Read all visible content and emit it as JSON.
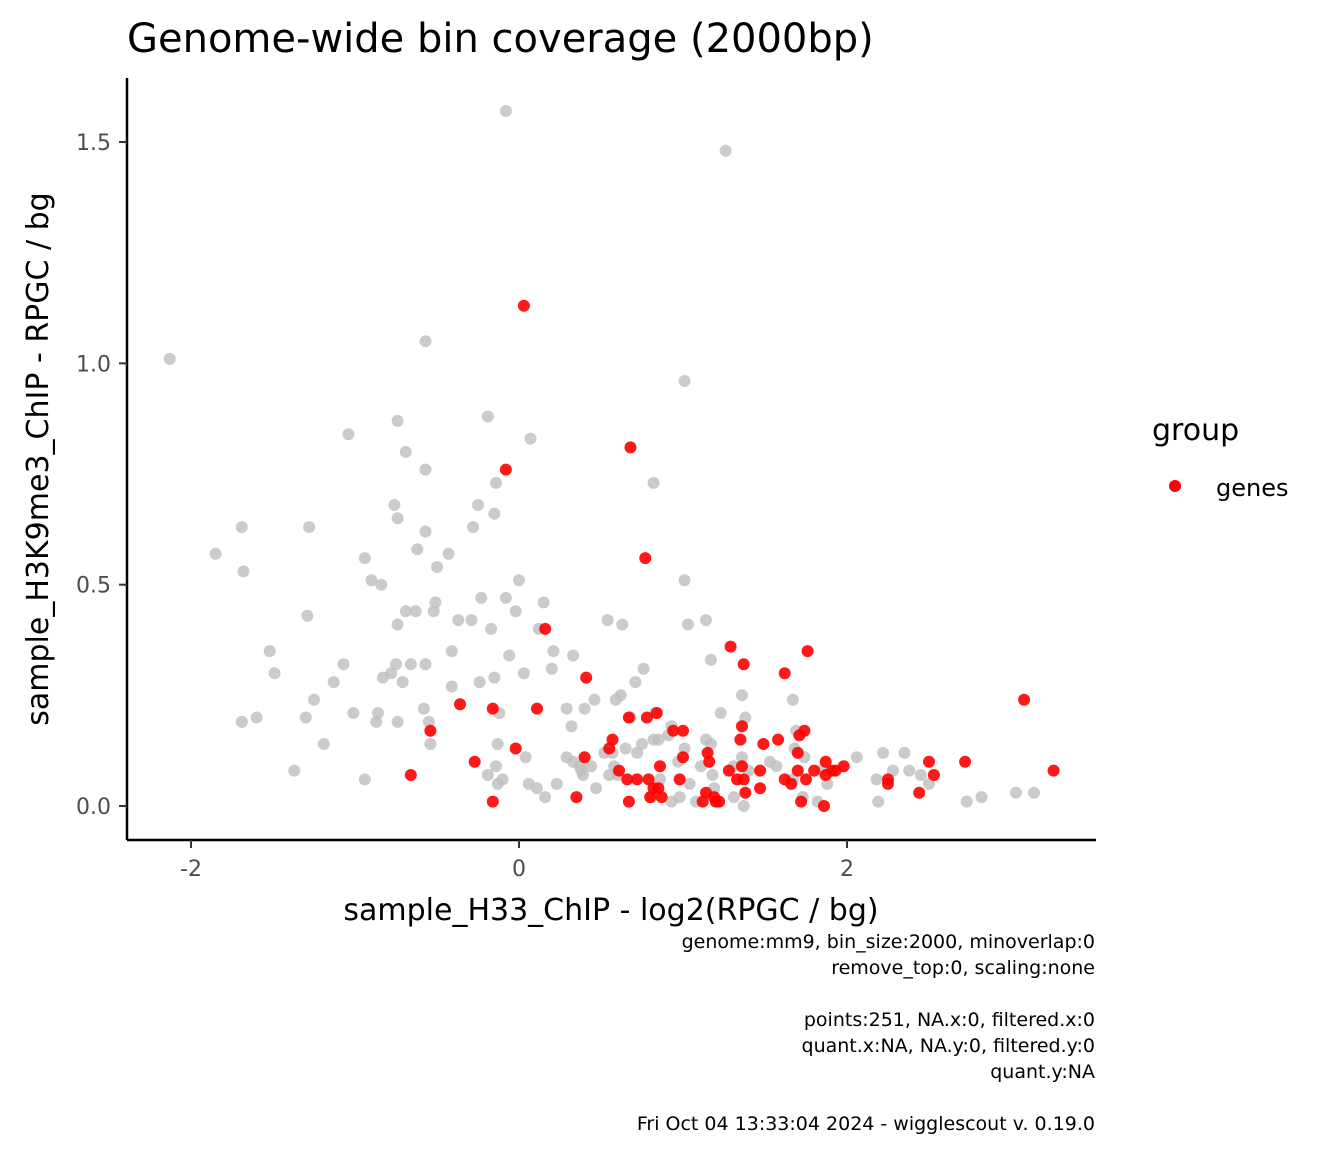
{
  "chart_data": {
    "type": "scatter",
    "title": "Genome-wide bin coverage (2000bp)",
    "xlabel": "sample_H33_ChIP - log2(RPGC / bg)",
    "ylabel": "sample_H3K9me3_ChIP - RPGC / bg",
    "xlim": [
      -2.4,
      3.5
    ],
    "ylim": [
      -0.075,
      1.65
    ],
    "x_ticks": [
      -2,
      0,
      2
    ],
    "x_tick_labels": [
      "-2",
      "0",
      "2"
    ],
    "y_ticks": [
      0.0,
      0.5,
      1.0,
      1.5
    ],
    "y_tick_labels": [
      "0.0",
      "0.5",
      "1.0",
      "1.5"
    ],
    "grid": false,
    "legend": {
      "title": "group",
      "position": "right",
      "entries": [
        {
          "label": "genes",
          "color": "#ff0000"
        }
      ]
    },
    "colors": {
      "background_points": "#bebebe",
      "genes": "#ff0000"
    },
    "series": [
      {
        "role": "background",
        "points": [
          [
            -0.08,
            1.57
          ],
          [
            1.26,
            1.48
          ],
          [
            -2.13,
            1.01
          ],
          [
            -0.57,
            1.05
          ],
          [
            1.01,
            0.96
          ],
          [
            -0.19,
            0.88
          ],
          [
            0.07,
            0.83
          ],
          [
            -1.04,
            0.84
          ],
          [
            -0.74,
            0.87
          ],
          [
            -0.69,
            0.8
          ],
          [
            -0.57,
            0.76
          ],
          [
            -0.14,
            0.73
          ],
          [
            0.82,
            0.73
          ],
          [
            -1.69,
            0.63
          ],
          [
            -1.28,
            0.63
          ],
          [
            -0.76,
            0.68
          ],
          [
            -0.74,
            0.65
          ],
          [
            -0.57,
            0.62
          ],
          [
            -0.25,
            0.68
          ],
          [
            -0.15,
            0.66
          ],
          [
            -0.28,
            0.63
          ],
          [
            -1.85,
            0.57
          ],
          [
            -1.68,
            0.53
          ],
          [
            -0.94,
            0.56
          ],
          [
            -0.62,
            0.58
          ],
          [
            -0.5,
            0.54
          ],
          [
            -0.43,
            0.57
          ],
          [
            -0.9,
            0.51
          ],
          [
            -0.84,
            0.5
          ],
          [
            1.01,
            0.51
          ],
          [
            0.0,
            0.51
          ],
          [
            -0.08,
            0.47
          ],
          [
            -0.23,
            0.47
          ],
          [
            -0.51,
            0.46
          ],
          [
            -0.52,
            0.44
          ],
          [
            -0.63,
            0.44
          ],
          [
            -0.69,
            0.44
          ],
          [
            -1.29,
            0.43
          ],
          [
            -0.37,
            0.42
          ],
          [
            -0.29,
            0.42
          ],
          [
            -0.74,
            0.41
          ],
          [
            -0.17,
            0.4
          ],
          [
            0.15,
            0.46
          ],
          [
            0.12,
            0.4
          ],
          [
            0.54,
            0.42
          ],
          [
            0.63,
            0.41
          ],
          [
            1.03,
            0.41
          ],
          [
            1.14,
            0.42
          ],
          [
            -0.02,
            0.44
          ],
          [
            -1.52,
            0.35
          ],
          [
            -1.49,
            0.3
          ],
          [
            -1.07,
            0.32
          ],
          [
            -0.75,
            0.32
          ],
          [
            -0.66,
            0.32
          ],
          [
            -0.57,
            0.32
          ],
          [
            -0.41,
            0.35
          ],
          [
            -0.06,
            0.34
          ],
          [
            0.21,
            0.35
          ],
          [
            0.33,
            0.34
          ],
          [
            0.2,
            0.31
          ],
          [
            0.76,
            0.31
          ],
          [
            1.17,
            0.33
          ],
          [
            -0.78,
            0.3
          ],
          [
            -0.83,
            0.29
          ],
          [
            -0.71,
            0.28
          ],
          [
            -1.13,
            0.28
          ],
          [
            -1.25,
            0.24
          ],
          [
            -0.41,
            0.27
          ],
          [
            -0.15,
            0.29
          ],
          [
            -0.24,
            0.28
          ],
          [
            0.03,
            0.3
          ],
          [
            0.71,
            0.28
          ],
          [
            0.62,
            0.25
          ],
          [
            0.59,
            0.24
          ],
          [
            0.46,
            0.24
          ],
          [
            1.36,
            0.25
          ],
          [
            1.67,
            0.24
          ],
          [
            -1.69,
            0.19
          ],
          [
            -1.6,
            0.2
          ],
          [
            -1.3,
            0.2
          ],
          [
            -1.01,
            0.21
          ],
          [
            -0.86,
            0.21
          ],
          [
            -0.87,
            0.19
          ],
          [
            -0.74,
            0.19
          ],
          [
            -0.58,
            0.22
          ],
          [
            -0.55,
            0.19
          ],
          [
            -0.12,
            0.21
          ],
          [
            0.29,
            0.22
          ],
          [
            0.4,
            0.22
          ],
          [
            0.32,
            0.18
          ],
          [
            0.68,
            0.2
          ],
          [
            0.83,
            0.21
          ],
          [
            0.93,
            0.18
          ],
          [
            1.23,
            0.21
          ],
          [
            1.38,
            0.2
          ],
          [
            1.69,
            0.17
          ],
          [
            -1.19,
            0.14
          ],
          [
            -0.54,
            0.14
          ],
          [
            -0.13,
            0.14
          ],
          [
            0.04,
            0.11
          ],
          [
            0.29,
            0.11
          ],
          [
            0.33,
            0.1
          ],
          [
            0.37,
            0.09
          ],
          [
            0.38,
            0.08
          ],
          [
            0.52,
            0.12
          ],
          [
            0.57,
            0.12
          ],
          [
            0.58,
            0.09
          ],
          [
            0.6,
            0.07
          ],
          [
            0.65,
            0.13
          ],
          [
            0.72,
            0.12
          ],
          [
            0.82,
            0.15
          ],
          [
            0.85,
            0.15
          ],
          [
            0.91,
            0.16
          ],
          [
            1.01,
            0.13
          ],
          [
            1.14,
            0.15
          ],
          [
            1.17,
            0.14
          ],
          [
            1.31,
            0.09
          ],
          [
            1.36,
            0.11
          ],
          [
            1.4,
            0.08
          ],
          [
            1.57,
            0.09
          ],
          [
            1.68,
            0.13
          ],
          [
            1.74,
            0.11
          ],
          [
            2.06,
            0.11
          ],
          [
            2.22,
            0.12
          ],
          [
            2.35,
            0.12
          ],
          [
            2.18,
            0.06
          ],
          [
            2.28,
            0.08
          ],
          [
            2.45,
            0.07
          ],
          [
            2.5,
            0.05
          ],
          [
            -1.37,
            0.08
          ],
          [
            -0.94,
            0.06
          ],
          [
            -0.19,
            0.07
          ],
          [
            -0.14,
            0.09
          ],
          [
            -0.1,
            0.06
          ],
          [
            -0.13,
            0.05
          ],
          [
            0.06,
            0.05
          ],
          [
            0.11,
            0.04
          ],
          [
            0.16,
            0.02
          ],
          [
            0.39,
            0.07
          ],
          [
            0.55,
            0.07
          ],
          [
            0.81,
            0.02
          ],
          [
            0.93,
            0.01
          ],
          [
            0.98,
            0.02
          ],
          [
            1.04,
            0.05
          ],
          [
            1.08,
            0.01
          ],
          [
            1.18,
            0.07
          ],
          [
            1.19,
            0.04
          ],
          [
            1.31,
            0.02
          ],
          [
            1.37,
            0.0
          ],
          [
            1.67,
            0.06
          ],
          [
            1.73,
            0.02
          ],
          [
            1.82,
            0.01
          ],
          [
            1.88,
            0.05
          ],
          [
            2.19,
            0.01
          ],
          [
            2.73,
            0.01
          ],
          [
            2.82,
            0.02
          ],
          [
            3.03,
            0.03
          ],
          [
            3.14,
            0.03
          ],
          [
            0.44,
            0.09
          ],
          [
            0.75,
            0.14
          ],
          [
            0.97,
            0.1
          ],
          [
            1.11,
            0.09
          ],
          [
            1.53,
            0.1
          ],
          [
            1.85,
            0.08
          ],
          [
            2.38,
            0.08
          ],
          [
            0.23,
            0.05
          ],
          [
            0.47,
            0.04
          ],
          [
            0.86,
            0.06
          ]
        ]
      },
      {
        "name": "genes",
        "points": [
          [
            0.03,
            1.13
          ],
          [
            0.68,
            0.81
          ],
          [
            -0.08,
            0.76
          ],
          [
            0.77,
            0.56
          ],
          [
            0.16,
            0.4
          ],
          [
            1.29,
            0.36
          ],
          [
            1.37,
            0.32
          ],
          [
            1.76,
            0.35
          ],
          [
            1.62,
            0.3
          ],
          [
            0.41,
            0.29
          ],
          [
            3.08,
            0.24
          ],
          [
            -0.36,
            0.23
          ],
          [
            -0.16,
            0.22
          ],
          [
            0.11,
            0.22
          ],
          [
            0.67,
            0.2
          ],
          [
            0.78,
            0.2
          ],
          [
            0.84,
            0.21
          ],
          [
            1.36,
            0.18
          ],
          [
            1.71,
            0.16
          ],
          [
            1.74,
            0.17
          ],
          [
            1.35,
            0.15
          ],
          [
            1.49,
            0.14
          ],
          [
            1.58,
            0.15
          ],
          [
            -0.54,
            0.17
          ],
          [
            0.57,
            0.15
          ],
          [
            0.94,
            0.17
          ],
          [
            1.0,
            0.17
          ],
          [
            -0.02,
            0.13
          ],
          [
            0.55,
            0.13
          ],
          [
            1.15,
            0.12
          ],
          [
            1.7,
            0.12
          ],
          [
            0.4,
            0.11
          ],
          [
            1.0,
            0.11
          ],
          [
            1.16,
            0.1
          ],
          [
            0.86,
            0.09
          ],
          [
            0.61,
            0.08
          ],
          [
            -0.27,
            0.1
          ],
          [
            1.28,
            0.08
          ],
          [
            1.36,
            0.09
          ],
          [
            1.47,
            0.08
          ],
          [
            1.7,
            0.08
          ],
          [
            1.87,
            0.1
          ],
          [
            1.91,
            0.08
          ],
          [
            1.98,
            0.09
          ],
          [
            1.93,
            0.08
          ],
          [
            2.5,
            0.1
          ],
          [
            2.72,
            0.1
          ],
          [
            3.26,
            0.08
          ],
          [
            -0.66,
            0.07
          ],
          [
            0.66,
            0.06
          ],
          [
            0.72,
            0.06
          ],
          [
            0.79,
            0.06
          ],
          [
            0.98,
            0.06
          ],
          [
            1.33,
            0.06
          ],
          [
            1.37,
            0.06
          ],
          [
            1.62,
            0.06
          ],
          [
            1.66,
            0.05
          ],
          [
            1.75,
            0.06
          ],
          [
            1.87,
            0.07
          ],
          [
            1.8,
            0.08
          ],
          [
            2.25,
            0.05
          ],
          [
            2.25,
            0.06
          ],
          [
            2.53,
            0.07
          ],
          [
            0.82,
            0.04
          ],
          [
            0.85,
            0.04
          ],
          [
            1.14,
            0.03
          ],
          [
            1.19,
            0.02
          ],
          [
            1.47,
            0.04
          ],
          [
            1.38,
            0.03
          ],
          [
            2.44,
            0.03
          ],
          [
            0.35,
            0.02
          ],
          [
            0.67,
            0.01
          ],
          [
            0.8,
            0.02
          ],
          [
            0.87,
            0.02
          ],
          [
            1.12,
            0.01
          ],
          [
            1.2,
            0.01
          ],
          [
            1.22,
            0.01
          ],
          [
            1.72,
            0.01
          ],
          [
            1.86,
            0.0
          ],
          [
            -0.16,
            0.01
          ]
        ]
      }
    ]
  },
  "caption_lines": [
    "genome:mm9, bin_size:2000, minoverlap:0",
    "remove_top:0, scaling:none",
    "",
    "points:251, NA.x:0, filtered.x:0",
    "quant.x:NA, NA.y:0, filtered.y:0",
    "quant.y:NA",
    "",
    "Fri Oct 04 13:33:04 2024 - wigglescout v. 0.19.0"
  ]
}
